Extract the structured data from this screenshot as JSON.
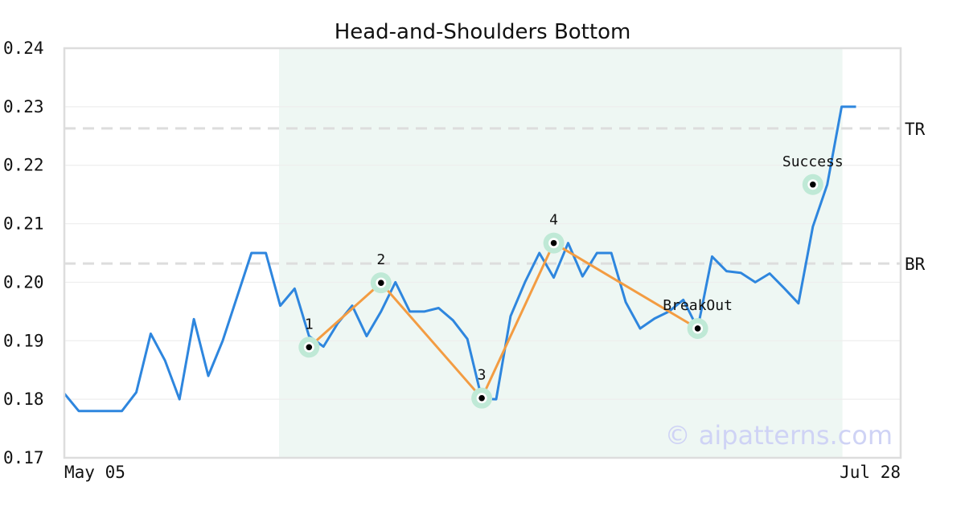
{
  "chart_data": {
    "type": "line",
    "title": "Head-and-Shoulders Bottom",
    "xlabel": "",
    "ylabel": "",
    "ylim": [
      0.17,
      0.24
    ],
    "yticks": [
      "0.17",
      "0.18",
      "0.19",
      "0.20",
      "0.21",
      "0.22",
      "0.23",
      "0.24"
    ],
    "x_tick_labels": [
      "May 05",
      "Jul 28"
    ],
    "grid": "horizontal",
    "series": [
      {
        "color": "#2e86de",
        "values": [
          0.181,
          0.178,
          0.178,
          0.178,
          0.178,
          0.1812,
          0.1912,
          0.1866,
          0.18,
          0.1937,
          0.184,
          0.19,
          0.1975,
          0.205,
          0.205,
          0.196,
          0.1989,
          0.1908,
          0.189,
          0.193,
          0.196,
          0.1908,
          0.195,
          0.2,
          0.195,
          0.195,
          0.1956,
          0.1935,
          0.1903,
          0.1801,
          0.18,
          0.1942,
          0.2,
          0.205,
          0.2008,
          0.2067,
          0.201,
          0.205,
          0.205,
          0.1966,
          0.1921,
          0.1938,
          0.195,
          0.197,
          0.1921,
          0.2044,
          0.2019,
          0.2016,
          0.2,
          0.2015,
          0.199,
          0.1964,
          0.2095,
          0.2167,
          0.23,
          0.23
        ]
      }
    ],
    "pattern_path": [
      {
        "index": 17,
        "value": 0.1889
      },
      {
        "index": 22,
        "value": 0.1999
      },
      {
        "index": 29,
        "value": 0.1802
      },
      {
        "index": 34,
        "value": 0.2067
      },
      {
        "index": 44,
        "value": 0.1921
      }
    ],
    "points": [
      {
        "label": "1",
        "index": 17,
        "value": 0.1889,
        "label_pos": "above"
      },
      {
        "label": "2",
        "index": 22,
        "value": 0.1999,
        "label_pos": "above"
      },
      {
        "label": "3",
        "index": 29,
        "value": 0.1802,
        "label_pos": "above"
      },
      {
        "label": "4",
        "index": 34,
        "value": 0.2067,
        "label_pos": "above"
      },
      {
        "label": "BreakOut",
        "index": 44,
        "value": 0.1921,
        "label_pos": "above-left"
      },
      {
        "label": "Success",
        "index": 52,
        "value": 0.2167,
        "label_pos": "above"
      }
    ],
    "shaded_range": {
      "start_index": 15,
      "end_index": 54
    },
    "reference_lines": [
      {
        "label": "TR",
        "value": 0.2263
      },
      {
        "label": "BR",
        "value": 0.2032
      }
    ],
    "colors": {
      "price_line": "#2e86de",
      "pattern_line": "#f39c42",
      "highlight": "#bfe9d6",
      "shade": "#eef7f3",
      "reference": "#dddddd"
    },
    "watermark": "© aipatterns.com"
  }
}
